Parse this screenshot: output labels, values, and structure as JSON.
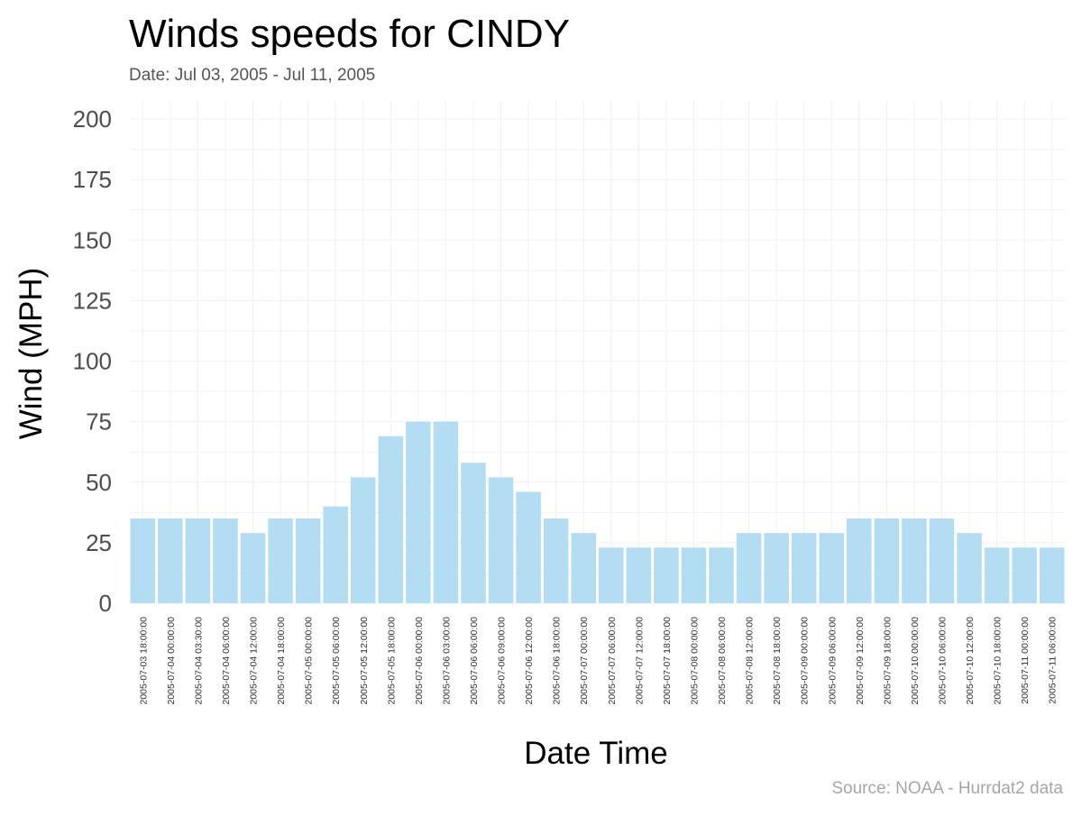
{
  "chart_data": {
    "type": "bar",
    "title": "Winds speeds for CINDY",
    "subtitle": "Date:  Jul 03, 2005 - Jul 11, 2005",
    "xlabel": "Date Time",
    "ylabel": "Wind (MPH)",
    "caption": "Source: NOAA - Hurrdat2 data",
    "ylim": [
      0,
      200
    ],
    "yticks": [
      0,
      25,
      50,
      75,
      100,
      125,
      150,
      175,
      200
    ],
    "grid": true,
    "bar_color": "#b3ddf2",
    "categories": [
      "2005-07-03 18:00:00",
      "2005-07-04 00:00:00",
      "2005-07-04 03:30:00",
      "2005-07-04 06:00:00",
      "2005-07-04 12:00:00",
      "2005-07-04 18:00:00",
      "2005-07-05 00:00:00",
      "2005-07-05 06:00:00",
      "2005-07-05 12:00:00",
      "2005-07-05 18:00:00",
      "2005-07-06 00:00:00",
      "2005-07-06 03:00:00",
      "2005-07-06 06:00:00",
      "2005-07-06 09:00:00",
      "2005-07-06 12:00:00",
      "2005-07-06 18:00:00",
      "2005-07-07 00:00:00",
      "2005-07-07 06:00:00",
      "2005-07-07 12:00:00",
      "2005-07-07 18:00:00",
      "2005-07-08 00:00:00",
      "2005-07-08 06:00:00",
      "2005-07-08 12:00:00",
      "2005-07-08 18:00:00",
      "2005-07-09 00:00:00",
      "2005-07-09 06:00:00",
      "2005-07-09 12:00:00",
      "2005-07-09 18:00:00",
      "2005-07-10 00:00:00",
      "2005-07-10 06:00:00",
      "2005-07-10 12:00:00",
      "2005-07-10 18:00:00",
      "2005-07-11 00:00:00",
      "2005-07-11 06:00:00"
    ],
    "values": [
      35,
      35,
      35,
      35,
      29,
      35,
      35,
      40,
      52,
      69,
      75,
      75,
      58,
      52,
      46,
      35,
      29,
      23,
      23,
      23,
      23,
      23,
      29,
      29,
      29,
      29,
      35,
      35,
      35,
      35,
      29,
      23,
      23,
      23
    ]
  }
}
